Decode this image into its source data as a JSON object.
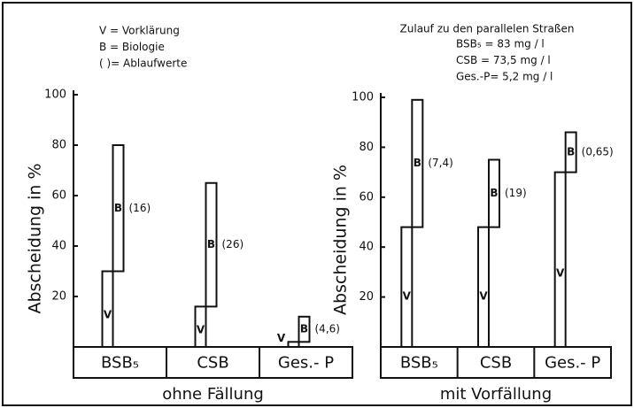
{
  "chart_data": [
    {
      "type": "bar",
      "stacked": true,
      "notes": [
        "V = Vorklärung",
        "B = Biologie",
        "( )= Ablaufwerte"
      ],
      "ylabel": "Abscheidung in %",
      "xlabel": "ohne Fällung",
      "categories": [
        "BSB₅",
        "CSB",
        "Ges.- P"
      ],
      "series": [
        {
          "name": "V",
          "color": "#ffffff",
          "values": [
            30,
            16,
            2
          ]
        },
        {
          "name": "B",
          "color": "#ffffff",
          "values": [
            50,
            49,
            10
          ]
        }
      ],
      "annotations": [
        "(16)",
        "(26)",
        "(4,6)"
      ],
      "ylim": [
        0,
        100
      ],
      "yticks": [
        20,
        40,
        60,
        80,
        100
      ]
    },
    {
      "type": "bar",
      "stacked": true,
      "title": "Zulauf zu den parallelen Straßen",
      "notes": [
        "BSB₅ = 83    mg / l",
        "CSB  = 73,5  mg / l",
        "Ges.-P=  5,2  mg / l"
      ],
      "ylabel": "Abscheidung in %",
      "xlabel": "mit Vorfällung",
      "categories": [
        "BSB₅",
        "CSB",
        "Ges.- P"
      ],
      "series": [
        {
          "name": "V",
          "color": "#ffffff",
          "values": [
            48,
            48,
            70
          ]
        },
        {
          "name": "B",
          "color": "#ffffff",
          "values": [
            51,
            27,
            16
          ]
        }
      ],
      "annotations": [
        "(7,4)",
        "(19)",
        "(0,65)"
      ],
      "ylim": [
        0,
        100
      ],
      "yticks": [
        20,
        40,
        60,
        80,
        100
      ]
    }
  ]
}
